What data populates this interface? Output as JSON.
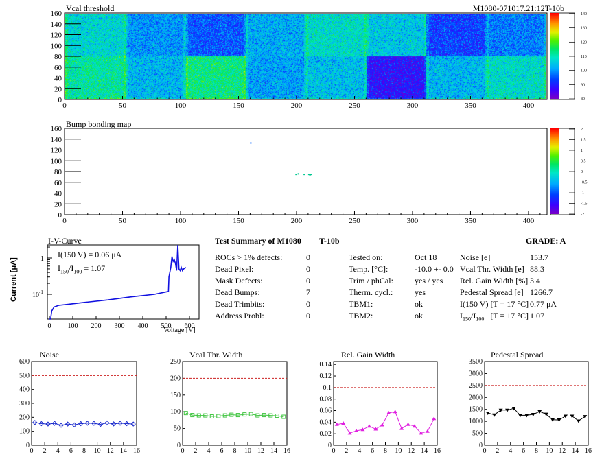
{
  "header": {
    "vcal_title": "Vcal threshold",
    "module_id": "M1080-071017.21:12T-10b",
    "bump_title": "Bump bonding map"
  },
  "vcal_map": {
    "x_ticks": [
      "0",
      "50",
      "100",
      "150",
      "200",
      "250",
      "300",
      "350",
      "400"
    ],
    "y_ticks": [
      "0",
      "20",
      "40",
      "60",
      "80",
      "100",
      "120",
      "140",
      "160"
    ],
    "palette_ticks": [
      "140",
      "130",
      "120",
      "110",
      "100",
      "90",
      "80"
    ],
    "zrange": [
      80,
      140
    ],
    "xrange": [
      0,
      416
    ],
    "yrange": [
      0,
      160
    ],
    "block_means": [
      [
        107,
        100,
        95,
        102,
        108,
        105,
        93,
        98
      ],
      [
        111,
        103,
        113,
        101,
        104,
        88,
        103,
        108
      ]
    ]
  },
  "bump_map": {
    "x_ticks": [
      "0",
      "50",
      "100",
      "150",
      "200",
      "250",
      "300",
      "350",
      "400"
    ],
    "y_ticks": [
      "0",
      "20",
      "40",
      "60",
      "80",
      "100",
      "120",
      "140",
      "160"
    ],
    "palette_ticks": [
      "2",
      "1.5",
      "1",
      "0.5",
      "0",
      "-0.5",
      "-1",
      "-1.5",
      "-2"
    ],
    "dead_bumps": [
      [
        160,
        134
      ],
      [
        199,
        76
      ],
      [
        201,
        77
      ],
      [
        210,
        76
      ],
      [
        211,
        75
      ],
      [
        212,
        76
      ],
      [
        206,
        76
      ]
    ]
  },
  "iv": {
    "title": "I-V-Curve",
    "ylabel": "Current [μA]",
    "xlabel": "Voltage [V]",
    "annot1": "I(150 V) = 0.06 μA",
    "annot2_a": "I",
    "annot2_sub1": "150",
    "annot2_b": "/I",
    "annot2_sub2": "100",
    "annot2_c": " =  1.07",
    "x_ticks": [
      "0",
      "100",
      "200",
      "300",
      "400",
      "500",
      "600"
    ],
    "y_ticks": [
      "1",
      "10"
    ],
    "y_tick_exp": "-1"
  },
  "summary": {
    "title": "Test Summary of M1080",
    "module_type": "T-10b",
    "grade": "GRADE:  A",
    "left_rows": [
      {
        "label": "ROCs > 1% defects:",
        "value": "0"
      },
      {
        "label": "Dead Pixel:",
        "value": "0"
      },
      {
        "label": "Mask Defects:",
        "value": "0"
      },
      {
        "label": "Dead Bumps:",
        "value": "7"
      },
      {
        "label": "Dead Trimbits:",
        "value": "0"
      },
      {
        "label": "Address Probl:",
        "value": "0"
      }
    ],
    "mid_rows": [
      {
        "label": "Tested on:",
        "value": "Oct 18"
      },
      {
        "label": "Temp. [°C]:",
        "value": "-10.0 +- 0.0"
      },
      {
        "label": "Trim / phCal:",
        "value": "yes / yes"
      },
      {
        "label": "Therm. cycl.:",
        "value": "yes"
      },
      {
        "label": "TBM1:",
        "value": "ok"
      },
      {
        "label": "TBM2:",
        "value": "ok"
      }
    ],
    "right_rows": [
      {
        "label": "Noise [e]",
        "value": "153.7"
      },
      {
        "label": "Vcal Thr. Width [e]",
        "value": "88.3"
      },
      {
        "label": "Rel. Gain Width [%]",
        "value": "3.4"
      },
      {
        "label": "Pedestal Spread [e]",
        "value": "1266.7"
      },
      {
        "label": "I(150 V) [T = 17 °C]",
        "value": "0.77 μA"
      },
      {
        "label": "I150/I100   [T = 17 °C]",
        "value": "1.07"
      }
    ]
  },
  "chart_data": [
    {
      "type": "scatter",
      "title": "Noise",
      "x": [
        0,
        1,
        2,
        3,
        4,
        5,
        6,
        7,
        8,
        9,
        10,
        11,
        12,
        13,
        14,
        15
      ],
      "values": [
        163,
        155,
        152,
        157,
        143,
        152,
        146,
        155,
        158,
        157,
        150,
        160,
        153,
        158,
        155,
        152
      ],
      "xlim": [
        0,
        16
      ],
      "ylim": [
        0,
        600
      ],
      "x_ticks": [
        "0",
        "2",
        "4",
        "6",
        "8",
        "10",
        "12",
        "14",
        "16"
      ],
      "y_ticks": [
        "0",
        "100",
        "200",
        "300",
        "400",
        "500",
        "600"
      ],
      "threshold": 500,
      "color": "#1a2acc",
      "marker": "diamond"
    },
    {
      "type": "scatter",
      "title": "Vcal Thr. Width",
      "x": [
        0,
        1,
        2,
        3,
        4,
        5,
        6,
        7,
        8,
        9,
        10,
        11,
        12,
        13,
        14,
        15
      ],
      "values": [
        96,
        90,
        89,
        89,
        86,
        87,
        89,
        91,
        90,
        92,
        93,
        89,
        90,
        89,
        88,
        85
      ],
      "xlim": [
        0,
        16
      ],
      "ylim": [
        0,
        250
      ],
      "x_ticks": [
        "0",
        "2",
        "4",
        "6",
        "8",
        "10",
        "12",
        "14",
        "16"
      ],
      "y_ticks": [
        "0",
        "50",
        "100",
        "150",
        "200",
        "250"
      ],
      "threshold": 200,
      "color": "#3fc43f",
      "marker": "square"
    },
    {
      "type": "scatter",
      "title": "Rel. Gain Width",
      "x": [
        0,
        1,
        2,
        3,
        4,
        5,
        6,
        7,
        8,
        9,
        10,
        11,
        12,
        13,
        14,
        15
      ],
      "values": [
        0.036,
        0.038,
        0.021,
        0.025,
        0.027,
        0.033,
        0.028,
        0.035,
        0.056,
        0.058,
        0.029,
        0.036,
        0.033,
        0.021,
        0.024,
        0.046
      ],
      "xlim": [
        0,
        16
      ],
      "ylim": [
        0,
        0.145
      ],
      "x_ticks": [
        "0",
        "2",
        "4",
        "6",
        "8",
        "10",
        "12",
        "14",
        "16"
      ],
      "y_ticks": [
        "0",
        "0.02",
        "0.04",
        "0.06",
        "0.08",
        "0.1",
        "0.12",
        "0.14"
      ],
      "threshold": 0.1,
      "color": "#e020e0",
      "marker": "triangle-up"
    },
    {
      "type": "scatter",
      "title": "Pedestal Spread",
      "x": [
        0,
        1,
        2,
        3,
        4,
        5,
        6,
        7,
        8,
        9,
        10,
        11,
        12,
        13,
        14,
        15
      ],
      "values": [
        1350,
        1270,
        1470,
        1470,
        1540,
        1250,
        1250,
        1290,
        1410,
        1300,
        1070,
        1060,
        1220,
        1220,
        1020,
        1200
      ],
      "xlim": [
        0,
        16
      ],
      "ylim": [
        0,
        3500
      ],
      "x_ticks": [
        "0",
        "2",
        "4",
        "6",
        "8",
        "10",
        "12",
        "14",
        "16"
      ],
      "y_ticks": [
        "0",
        "500",
        "1000",
        "1500",
        "2000",
        "2500",
        "3000",
        "3500"
      ],
      "threshold": 2500,
      "color": "#000000",
      "marker": "triangle-down"
    }
  ]
}
